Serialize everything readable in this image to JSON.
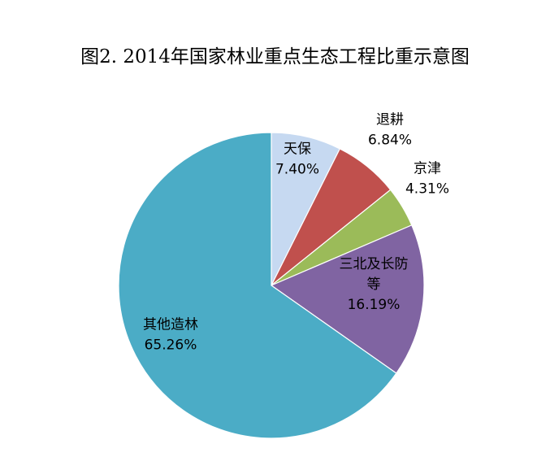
{
  "chart_data": {
    "type": "pie",
    "title": "图2. 2014年国家林业重点生态工程比重示意图",
    "slices": [
      {
        "label_lines": [
          "天保"
        ],
        "value": 7.4,
        "percent_label": "7.40%",
        "color": "#c6d9f1"
      },
      {
        "label_lines": [
          "退耕"
        ],
        "value": 6.84,
        "percent_label": "6.84%",
        "color": "#c0504d"
      },
      {
        "label_lines": [
          "京津"
        ],
        "value": 4.31,
        "percent_label": "4.31%",
        "color": "#9bbb59"
      },
      {
        "label_lines": [
          "三北及长防",
          "等"
        ],
        "value": 16.19,
        "percent_label": "16.19%",
        "color": "#8064a2"
      },
      {
        "label_lines": [
          "其他造林"
        ],
        "value": 65.26,
        "percent_label": "65.26%",
        "color": "#4bacc6"
      }
    ],
    "start_angle": "12 o'clock",
    "direction": "clockwise",
    "legend": "none"
  }
}
